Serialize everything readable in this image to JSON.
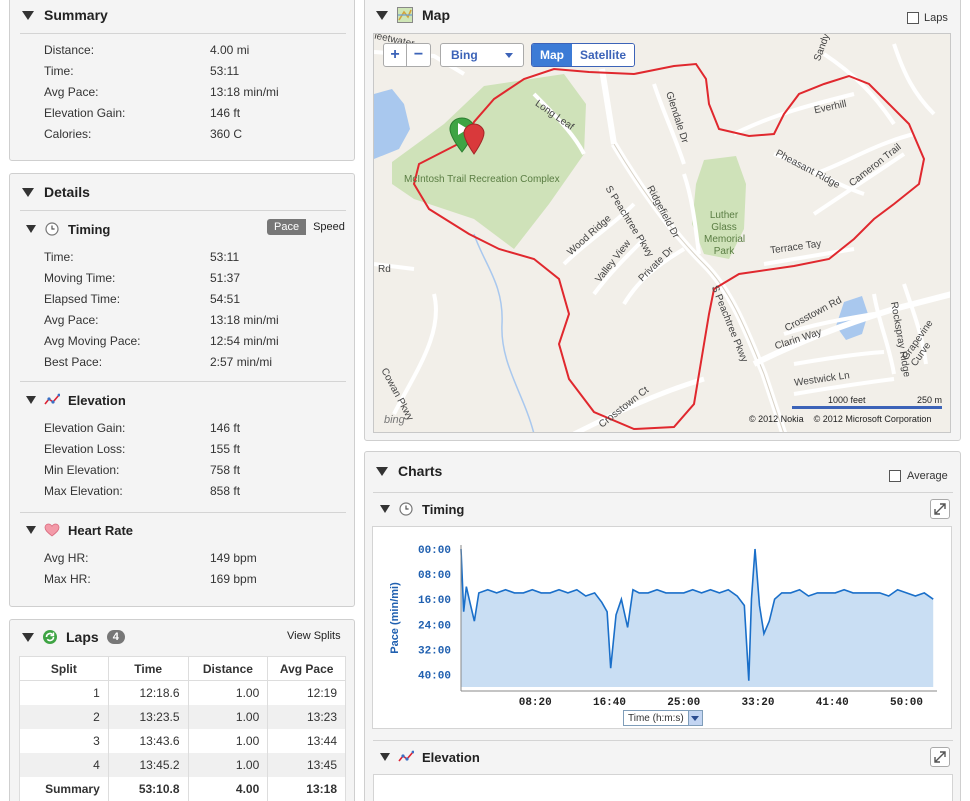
{
  "summary": {
    "title": "Summary",
    "rows": [
      {
        "label": "Distance:",
        "value": "4.00 mi"
      },
      {
        "label": "Time:",
        "value": "53:11"
      },
      {
        "label": "Avg Pace:",
        "value": "13:18 min/mi"
      },
      {
        "label": "Elevation Gain:",
        "value": "146 ft"
      },
      {
        "label": "Calories:",
        "value": "360 C"
      }
    ]
  },
  "details": {
    "title": "Details",
    "timing": {
      "title": "Timing",
      "toggle": {
        "pace": "Pace",
        "speed": "Speed"
      },
      "rows": [
        {
          "label": "Time:",
          "value": "53:11"
        },
        {
          "label": "Moving Time:",
          "value": "51:37"
        },
        {
          "label": "Elapsed Time:",
          "value": "54:51"
        },
        {
          "label": "Avg Pace:",
          "value": "13:18 min/mi"
        },
        {
          "label": "Avg Moving Pace:",
          "value": "12:54 min/mi"
        },
        {
          "label": "Best Pace:",
          "value": "2:57 min/mi"
        }
      ]
    },
    "elevation": {
      "title": "Elevation",
      "rows": [
        {
          "label": "Elevation Gain:",
          "value": "146 ft"
        },
        {
          "label": "Elevation Loss:",
          "value": "155 ft"
        },
        {
          "label": "Min Elevation:",
          "value": "758 ft"
        },
        {
          "label": "Max Elevation:",
          "value": "858 ft"
        }
      ]
    },
    "heart_rate": {
      "title": "Heart Rate",
      "rows": [
        {
          "label": "Avg HR:",
          "value": "149 bpm"
        },
        {
          "label": "Max HR:",
          "value": "169 bpm"
        }
      ]
    }
  },
  "laps": {
    "title": "Laps",
    "count": "4",
    "view_splits": "View Splits",
    "headers": [
      "Split",
      "Time",
      "Distance",
      "Avg Pace"
    ],
    "rows": [
      [
        "1",
        "12:18.6",
        "1.00",
        "12:19"
      ],
      [
        "2",
        "13:23.5",
        "1.00",
        "13:23"
      ],
      [
        "3",
        "13:43.6",
        "1.00",
        "13:44"
      ],
      [
        "4",
        "13:45.2",
        "1.00",
        "13:45"
      ]
    ],
    "summary_row": [
      "Summary",
      "53:10.8",
      "4.00",
      "13:18"
    ]
  },
  "map": {
    "title": "Map",
    "laps_label": "Laps",
    "provider": "Bing",
    "map_tab": "Map",
    "satellite_tab": "Satellite",
    "zoom_in": "+",
    "zoom_out": "−",
    "scale_feet": "1000 feet",
    "scale_m": "250 m",
    "copyright": "© 2012 Nokia    © 2012 Microsoft Corporation",
    "bing_logo": "bing",
    "labels": {
      "park1": "McIntosh Trail Recreation Complex",
      "park2a": "Luther",
      "park2b": "Glass",
      "park2c": "Memorial",
      "park2d": "Park",
      "s_peachtree1": "S Peachtree Pkwy",
      "s_peachtree2": "S Peachtree Pkwy",
      "long_leaf": "Long Leaf",
      "glendale": "Glendale Dr",
      "ridgefield": "Ridgefield Dr",
      "everhill": "Everhill",
      "pheasant": "Pheasant Ridge",
      "cameron": "Cameron Trail",
      "wood_ridge": "Wood Ridge",
      "valley_view": "Valley View",
      "private": "Private Dr",
      "terrace": "Terrace Tay",
      "crosstown_rd": "Crosstown Rd",
      "clarin": "Clarin Way",
      "westwick": "Westwick Ln",
      "crosstown_ct": "Crosstown Ct",
      "cowan": "Cowan Pkwy",
      "rockspray": "Rockspray Ridge",
      "grape": "Grapevine Curve",
      "sandy": "Sandy",
      "fleetwater": "Fleetwater",
      "rd": "Rd"
    }
  },
  "charts": {
    "title": "Charts",
    "average_label": "Average",
    "timing_title": "Timing",
    "elevation_title": "Elevation",
    "axis_select": "Time (h:m:s)",
    "colors": {
      "line": "#1a6fc9",
      "fill": "#c9def3",
      "axis_text": "#2060b0"
    }
  },
  "chart_data": {
    "type": "area",
    "title": "Timing",
    "xlabel": "Time (h:m:s)",
    "ylabel": "Pace (min/mi)",
    "x_ticks": [
      "08:20",
      "16:40",
      "25:00",
      "33:20",
      "41:40",
      "50:00"
    ],
    "y_ticks": [
      "00:00",
      "08:00",
      "16:00",
      "24:00",
      "32:00",
      "40:00"
    ],
    "y_inverted": true,
    "xlim": [
      0,
      53.2
    ],
    "ylim": [
      0,
      44
    ],
    "x": [
      0,
      0.3,
      0.6,
      1,
      1.5,
      2,
      3,
      4,
      5,
      6,
      7,
      8,
      9,
      10,
      11,
      12,
      13,
      14,
      15,
      15.8,
      16.4,
      16.8,
      17.4,
      18,
      18.7,
      19.3,
      20,
      21,
      22,
      23,
      24,
      25,
      26,
      27,
      28,
      29,
      30,
      31,
      31.8,
      32.3,
      32.6,
      33,
      33.5,
      34,
      34.6,
      35.2,
      36,
      37,
      38,
      39,
      40,
      41,
      42,
      43,
      44,
      45,
      46,
      47,
      48,
      49,
      50,
      51,
      52,
      53
    ],
    "y": [
      0,
      20,
      12,
      17,
      23,
      14,
      13,
      14,
      13,
      14,
      14,
      13,
      14,
      14,
      13,
      14,
      13,
      15,
      14,
      17,
      20,
      38,
      21,
      16,
      25,
      13,
      14,
      14,
      13,
      14,
      14,
      14,
      13,
      14,
      13,
      14,
      13,
      15,
      18,
      42,
      16,
      0,
      18,
      27,
      23,
      16,
      14,
      14,
      13,
      15,
      14,
      14,
      14,
      13,
      14,
      14,
      14,
      14,
      15,
      13,
      14,
      15,
      14,
      16
    ]
  }
}
